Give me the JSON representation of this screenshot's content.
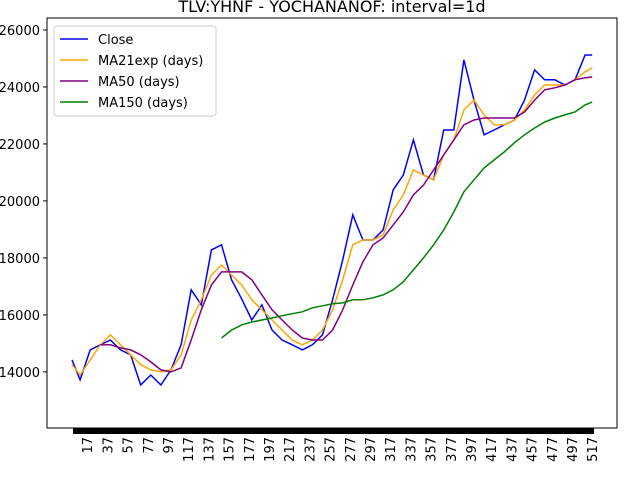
{
  "chart_data": {
    "type": "line",
    "title": "TLV:YHNF - YOCHANANOF: interval=1d",
    "x": [
      2,
      10,
      20,
      30,
      40,
      50,
      60,
      70,
      80,
      90,
      100,
      110,
      120,
      130,
      140,
      150,
      160,
      170,
      180,
      190,
      200,
      210,
      220,
      230,
      240,
      250,
      260,
      270,
      280,
      290,
      300,
      310,
      320,
      330,
      340,
      350,
      360,
      370,
      380,
      390,
      400,
      410,
      420,
      430,
      440,
      450,
      460,
      470,
      480,
      490,
      500,
      510,
      517
    ],
    "series": [
      {
        "name": "Close",
        "color": "#0000ff",
        "values": [
          14420,
          13720,
          14770,
          14950,
          15120,
          14770,
          14600,
          13540,
          13890,
          13540,
          14070,
          14950,
          16880,
          16350,
          18280,
          18460,
          17230,
          16560,
          15820,
          16350,
          15470,
          15120,
          14950,
          14770,
          14950,
          15300,
          16530,
          17930,
          19510,
          18630,
          18630,
          18980,
          20390,
          20910,
          22140,
          20910,
          20740,
          22490,
          22490,
          24950,
          23540,
          22320,
          22490,
          22670,
          22840,
          23540,
          24600,
          24250,
          24250,
          24070,
          24250,
          25120,
          25120
        ]
      },
      {
        "name": "MA21exp (days)",
        "color": "#ffa500",
        "values": [
          14250,
          13890,
          14420,
          14950,
          15300,
          14950,
          14600,
          14250,
          14070,
          14000,
          14070,
          14600,
          15820,
          16530,
          17400,
          17750,
          17400,
          17050,
          16530,
          16180,
          15820,
          15470,
          15120,
          14950,
          15120,
          15470,
          16180,
          17230,
          18460,
          18630,
          18630,
          18810,
          19680,
          20210,
          21090,
          20910,
          20740,
          21610,
          22140,
          23190,
          23540,
          23020,
          22670,
          22670,
          22840,
          23190,
          23720,
          24070,
          24070,
          24070,
          24250,
          24530,
          24670
        ]
      },
      {
        "name": "MA50 (days)",
        "color": "#800080",
        "values": [
          null,
          null,
          null,
          14950,
          14950,
          14840,
          14770,
          14600,
          14350,
          14070,
          14000,
          14140,
          15120,
          16180,
          17050,
          17510,
          17510,
          17510,
          17230,
          16700,
          16180,
          15820,
          15470,
          15190,
          15120,
          15120,
          15470,
          16180,
          17050,
          17860,
          18460,
          18700,
          19160,
          19610,
          20210,
          20560,
          21090,
          21610,
          22140,
          22670,
          22840,
          22910,
          22910,
          22910,
          22910,
          23120,
          23540,
          23900,
          23970,
          24070,
          24250,
          24320,
          24350
        ]
      },
      {
        "name": "MA150 (days)",
        "color": "#008000",
        "values": [
          null,
          null,
          null,
          null,
          null,
          null,
          null,
          null,
          null,
          null,
          null,
          null,
          null,
          null,
          null,
          15190,
          15470,
          15650,
          15750,
          15820,
          15890,
          15970,
          16040,
          16110,
          16250,
          16320,
          16390,
          16420,
          16530,
          16530,
          16600,
          16700,
          16880,
          17160,
          17580,
          18000,
          18460,
          18980,
          19610,
          20320,
          20740,
          21160,
          21440,
          21720,
          22040,
          22320,
          22560,
          22770,
          22910,
          23020,
          23120,
          23370,
          23470
        ]
      }
    ],
    "xlim": [
      -22.8,
      541.6
    ],
    "xticks": [
      17,
      37,
      57,
      77,
      97,
      117,
      137,
      157,
      177,
      197,
      217,
      237,
      257,
      277,
      297,
      317,
      337,
      357,
      377,
      397,
      417,
      437,
      457,
      477,
      497,
      517
    ],
    "ylim": [
      12030,
      26420
    ],
    "yticks": [
      14000,
      16000,
      18000,
      20000,
      22000,
      24000,
      26000
    ],
    "legend": "upper left"
  }
}
